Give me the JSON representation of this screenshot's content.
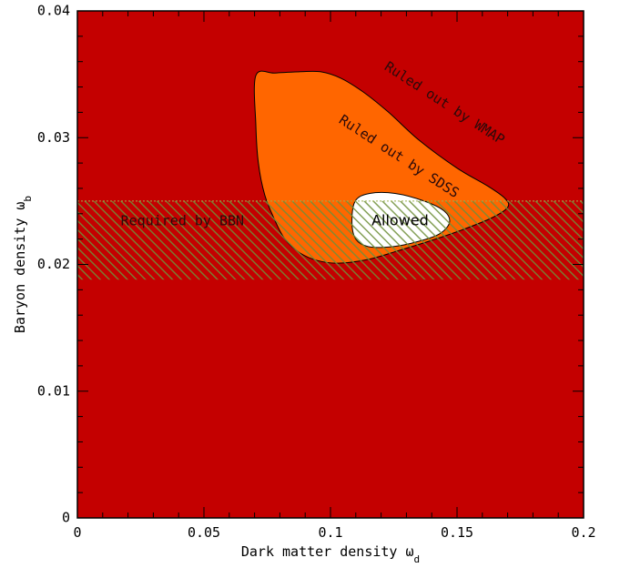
{
  "chart_data": {
    "type": "area",
    "title": "",
    "xlabel": "Dark matter density ω",
    "xlabel_sub": "d",
    "ylabel": "Baryon density ω",
    "ylabel_sub": "b",
    "xlim": [
      0,
      0.2
    ],
    "ylim": [
      0,
      0.04
    ],
    "x_ticks": [
      0,
      0.05,
      0.1,
      0.15,
      0.2
    ],
    "x_tick_labels": [
      "0",
      "0.05",
      "0.1",
      "0.15",
      "0.2"
    ],
    "y_ticks": [
      0,
      0.01,
      0.02,
      0.03,
      0.04
    ],
    "y_tick_labels": [
      "0",
      "0.01",
      "0.02",
      "0.03",
      "0.04"
    ],
    "grid": false,
    "colors": {
      "wmap_region": "#c40000",
      "sdss_region": "#ff6600",
      "allowed_region": "#ffffff",
      "bbn_hatch": "#6f8f3a",
      "outline": "#000000"
    },
    "regions": [
      {
        "name": "Ruled out by WMAP",
        "label_at": [
          0.145,
          0.0327
        ],
        "label_angle": 33
      },
      {
        "name": "Ruled out by SDSS",
        "label_at": [
          0.127,
          0.0285
        ],
        "label_angle": 33,
        "boundary": [
          [
            0.0705,
            0.0349
          ],
          [
            0.078,
            0.0351
          ],
          [
            0.088,
            0.0352
          ],
          [
            0.096,
            0.0352
          ],
          [
            0.104,
            0.0347
          ],
          [
            0.113,
            0.0336
          ],
          [
            0.123,
            0.032
          ],
          [
            0.135,
            0.0298
          ],
          [
            0.15,
            0.0276
          ],
          [
            0.162,
            0.0262
          ],
          [
            0.169,
            0.0252
          ],
          [
            0.17,
            0.0245
          ],
          [
            0.164,
            0.0237
          ],
          [
            0.153,
            0.0228
          ],
          [
            0.14,
            0.0219
          ],
          [
            0.127,
            0.0211
          ],
          [
            0.115,
            0.0204
          ],
          [
            0.103,
            0.0201
          ],
          [
            0.095,
            0.0203
          ],
          [
            0.088,
            0.0209
          ],
          [
            0.082,
            0.022
          ],
          [
            0.078,
            0.0235
          ],
          [
            0.074,
            0.0255
          ],
          [
            0.0715,
            0.028
          ],
          [
            0.0705,
            0.031
          ]
        ]
      },
      {
        "name": "Allowed",
        "label_at": [
          0.1275,
          0.0234
        ],
        "boundary": [
          [
            0.1085,
            0.0233
          ],
          [
            0.1098,
            0.025
          ],
          [
            0.1155,
            0.0256
          ],
          [
            0.1255,
            0.0256
          ],
          [
            0.137,
            0.025
          ],
          [
            0.145,
            0.0242
          ],
          [
            0.147,
            0.0233
          ],
          [
            0.143,
            0.0224
          ],
          [
            0.1345,
            0.0218
          ],
          [
            0.1245,
            0.0214
          ],
          [
            0.115,
            0.0214
          ],
          [
            0.11,
            0.022
          ]
        ]
      },
      {
        "name": "Required by BBN",
        "label_at": [
          0.0415,
          0.0234
        ],
        "y_band": [
          0.0188,
          0.025
        ]
      }
    ]
  }
}
